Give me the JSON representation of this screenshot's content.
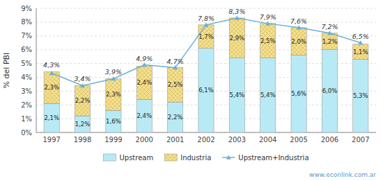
{
  "chart_data": {
    "type": "bar",
    "stacked": true,
    "y_label": "% del PBI",
    "categories": [
      "1997",
      "1998",
      "1999",
      "2000",
      "2001",
      "2002",
      "2003",
      "2004",
      "2005",
      "2006",
      "2007"
    ],
    "series": [
      {
        "name": "Upstream",
        "color": "#b8eaf5",
        "values": [
          2.1,
          1.2,
          1.6,
          2.4,
          2.2,
          6.1,
          5.4,
          5.4,
          5.6,
          6.0,
          5.3
        ],
        "value_labels": [
          "2,1%",
          "1,2%",
          "1,6%",
          "2,4%",
          "2,2%",
          "6,1%",
          "5,4%",
          "5,4%",
          "5,6%",
          "6,0%",
          "5,3%"
        ]
      },
      {
        "name": "Industria",
        "color": "#f7e08a",
        "values": [
          2.3,
          2.2,
          2.3,
          2.4,
          2.5,
          1.7,
          2.9,
          2.5,
          2.0,
          1.2,
          1.1
        ],
        "value_labels": [
          "2,3%",
          "2,2%",
          "2,3%",
          "2,4%",
          "2,5%",
          "1,7%",
          "2,9%",
          "2,5%",
          "2,0%",
          "1,2%",
          "1,1%"
        ]
      },
      {
        "name": "Upstream+Industria",
        "type": "line",
        "color": "#6ab0d4",
        "marker": "triangle",
        "values": [
          4.3,
          3.4,
          3.9,
          4.9,
          4.7,
          7.8,
          8.3,
          7.9,
          7.6,
          7.2,
          6.5
        ],
        "value_labels": [
          "4,3%",
          "3,4%",
          "3,9%",
          "4,9%",
          "4,7%",
          "7,8%",
          "8,3%",
          "7,9%",
          "7,6%",
          "7,2%",
          "6,5%"
        ]
      }
    ],
    "ylim": [
      0,
      9
    ],
    "yticks": [
      {
        "value": 0,
        "label": "0%"
      },
      {
        "value": 1,
        "label": "1%"
      },
      {
        "value": 2,
        "label": "2%"
      },
      {
        "value": 3,
        "label": "3%"
      },
      {
        "value": 4,
        "label": "4%"
      },
      {
        "value": 5,
        "label": "5%"
      },
      {
        "value": 6,
        "label": "6%"
      },
      {
        "value": 7,
        "label": "7%"
      },
      {
        "value": 8,
        "label": "8%"
      },
      {
        "value": 9,
        "label": "9%"
      }
    ],
    "grid": true,
    "data_labels": true,
    "legend": "bottom",
    "annotations": [
      "www.econlink.com.ar"
    ]
  }
}
